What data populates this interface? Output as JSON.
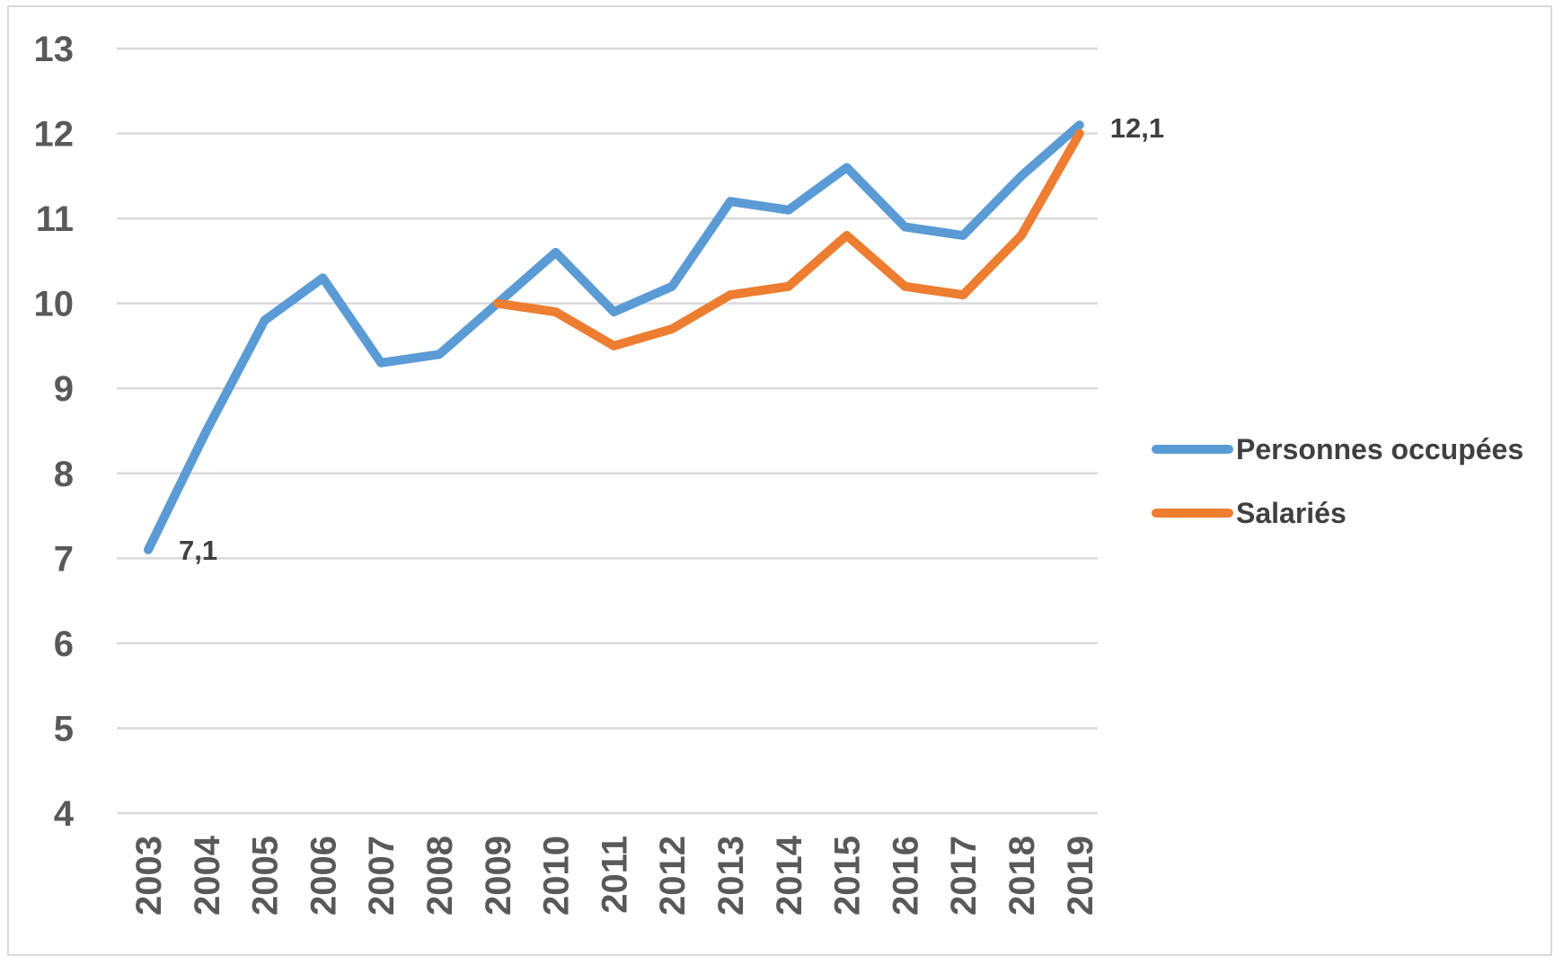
{
  "chart_data": {
    "type": "line",
    "title": "",
    "xlabel": "",
    "ylabel": "",
    "ylim": [
      4,
      13
    ],
    "yticks": [
      4,
      5,
      6,
      7,
      8,
      9,
      10,
      11,
      12,
      13
    ],
    "grid": "horizontal",
    "legend_position": "right",
    "categories": [
      "2003",
      "2004",
      "2005",
      "2006",
      "2007",
      "2008",
      "2009",
      "2010",
      "2011",
      "2012",
      "2013",
      "2014",
      "2015",
      "2016",
      "2017",
      "2018",
      "2019"
    ],
    "series": [
      {
        "name": "Personnes occupées",
        "color": "#5b9bd5",
        "values": [
          7.1,
          8.5,
          9.8,
          10.3,
          9.3,
          9.4,
          10.0,
          10.6,
          9.9,
          10.2,
          11.2,
          11.1,
          11.6,
          10.9,
          10.8,
          11.5,
          12.1
        ]
      },
      {
        "name": "Salariés",
        "color": "#ed7d31",
        "values": [
          null,
          null,
          null,
          null,
          null,
          null,
          10.0,
          9.9,
          9.5,
          9.7,
          10.1,
          10.2,
          10.8,
          10.2,
          10.1,
          10.8,
          12.0
        ]
      }
    ],
    "data_labels": [
      {
        "series": "Personnes occupées",
        "category": "2003",
        "text": "7,1"
      },
      {
        "series": "Personnes occupées",
        "category": "2019",
        "text": "12,1"
      }
    ]
  }
}
